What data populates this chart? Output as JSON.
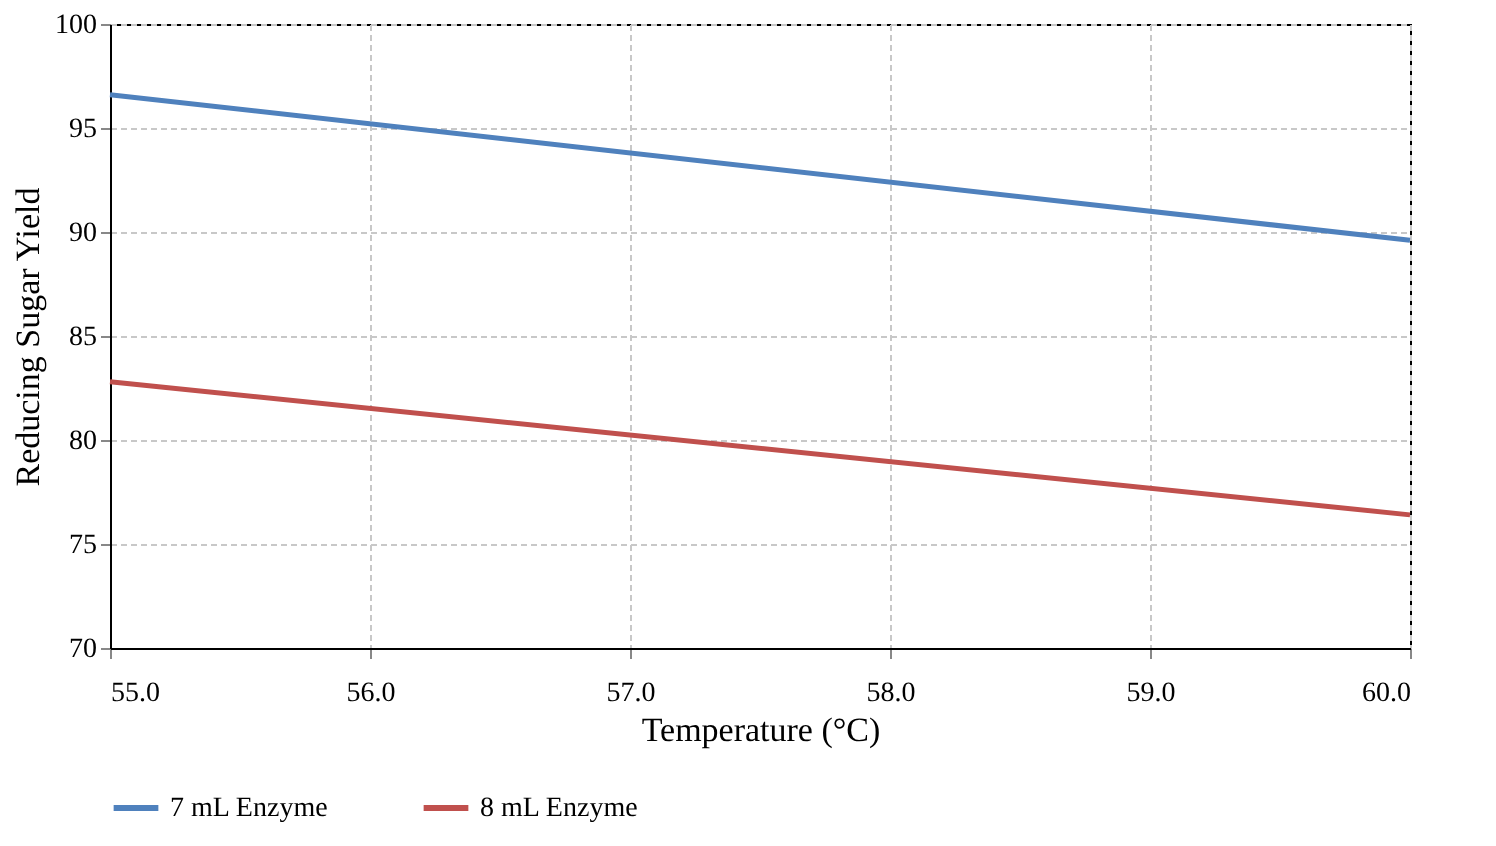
{
  "chart_data": {
    "type": "line",
    "xlabel": "Temperature (°C)",
    "ylabel": "Reducing Sugar Yield",
    "x": [
      55,
      60
    ],
    "series": [
      {
        "name": "7 mL Enzyme",
        "color": "#4f81bd",
        "values": [
          96.6,
          89.6
        ]
      },
      {
        "name": "8 mL Enzyme",
        "color": "#c0504d",
        "values": [
          82.8,
          76.4
        ]
      }
    ],
    "xlim": [
      55,
      60
    ],
    "xticks": [
      {
        "value": 55,
        "label": "55.0"
      },
      {
        "value": 56,
        "label": "56.0"
      },
      {
        "value": 57,
        "label": "57.0"
      },
      {
        "value": 58,
        "label": "58.0"
      },
      {
        "value": 59,
        "label": "59.0"
      },
      {
        "value": 60,
        "label": "60.0"
      }
    ],
    "ylim": [
      70,
      100
    ],
    "yticks": [
      70,
      75,
      80,
      85,
      90,
      95,
      100
    ],
    "grid": true,
    "legend": "bottom",
    "marker": "none",
    "line_style": "solid"
  }
}
